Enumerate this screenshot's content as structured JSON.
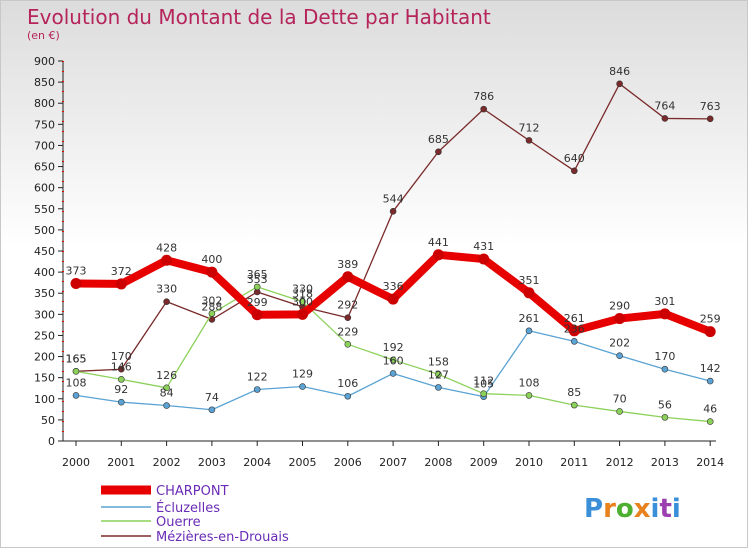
{
  "header": {
    "title": "Evolution du Montant de la Dette par Habitant",
    "subtitle": "(en €)"
  },
  "logo": {
    "text": "Proxiti",
    "colors": [
      "#3a8fd8",
      "#e8821e",
      "#4caf30",
      "#e8821e",
      "#3a8fd8",
      "#9c3fb0",
      "#3a8fd8"
    ]
  },
  "chart_data": {
    "type": "line",
    "title": "Evolution du Montant de la Dette par Habitant",
    "subtitle": "(en €)",
    "xlabel": "",
    "ylabel": "",
    "categories": [
      "2000",
      "2001",
      "2002",
      "2003",
      "2004",
      "2005",
      "2006",
      "2007",
      "2008",
      "2009",
      "2010",
      "2011",
      "2012",
      "2013",
      "2014"
    ],
    "ylim": [
      0,
      900
    ],
    "yticks": [
      0,
      50,
      100,
      150,
      200,
      250,
      300,
      350,
      400,
      450,
      500,
      550,
      600,
      650,
      700,
      750,
      800,
      850,
      900
    ],
    "grid": false,
    "legend_position": "bottom-left",
    "series": [
      {
        "name": "CHARPONT",
        "color": "#e60000",
        "thick": true,
        "values": [
          373,
          372,
          428,
          400,
          299,
          300,
          389,
          336,
          441,
          431,
          351,
          261,
          290,
          301,
          259
        ]
      },
      {
        "name": "Écluzelles",
        "color": "#5aa3d4",
        "thick": false,
        "values": [
          108,
          92,
          84,
          74,
          122,
          129,
          106,
          160,
          127,
          105,
          261,
          236,
          202,
          170,
          142
        ]
      },
      {
        "name": "Ouerre",
        "color": "#8cd15a",
        "thick": false,
        "values": [
          165,
          146,
          126,
          302,
          365,
          330,
          229,
          192,
          158,
          112,
          108,
          85,
          70,
          56,
          46
        ]
      },
      {
        "name": "Mézières-en-Drouais",
        "color": "#7a2a2a",
        "thick": false,
        "values": [
          165,
          170,
          330,
          288,
          353,
          318,
          292,
          544,
          685,
          786,
          712,
          640,
          846,
          764,
          763
        ]
      }
    ],
    "data_labels": [
      {
        "series": 0,
        "labels": [
          "373",
          "372",
          "428",
          "400",
          "299",
          "300",
          "389",
          "336",
          "441",
          "431",
          "351",
          "261",
          "290",
          "301",
          "259"
        ]
      },
      {
        "series": 1,
        "labels": [
          "108",
          "92",
          "84",
          "74",
          "122",
          "129",
          "106",
          "160",
          "127",
          "105",
          "261",
          "236",
          "202",
          "170",
          "142"
        ]
      },
      {
        "series": 2,
        "labels": [
          "165",
          "146",
          "126",
          "302",
          "365",
          "330",
          "229",
          "192",
          "158",
          "112",
          "108",
          "85",
          "70",
          "56",
          "46"
        ]
      },
      {
        "series": 3,
        "labels": [
          "165",
          "170",
          "330",
          "288",
          "353",
          "318",
          "292",
          "544",
          "685",
          "786",
          "712",
          "640",
          "846",
          "764",
          "763"
        ]
      }
    ]
  }
}
